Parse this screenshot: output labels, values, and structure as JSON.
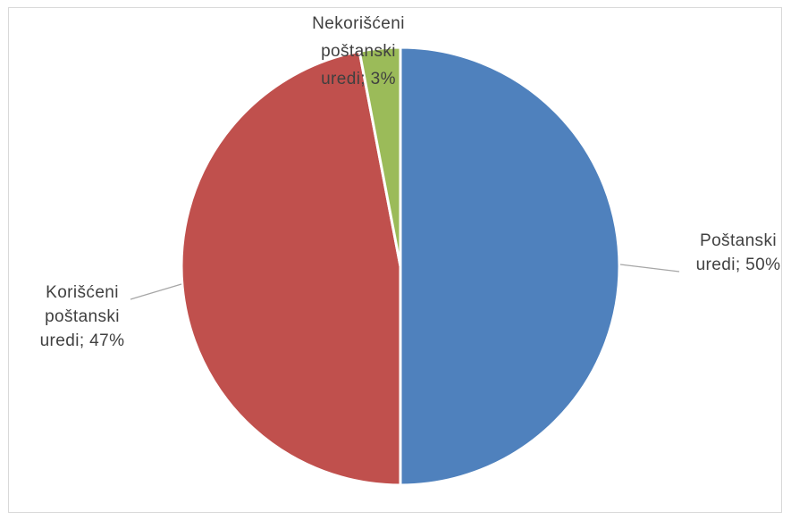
{
  "chart_data": {
    "type": "pie",
    "title": "",
    "slices": [
      {
        "name": "Poštanski uredi",
        "value": 50,
        "label_lines": [
          "Poštanski",
          "uredi; 50%"
        ],
        "color": "#4f81bd"
      },
      {
        "name": "Korišćeni poštanski uredi",
        "value": 47,
        "label_lines": [
          "Korišćeni",
          "poštanski",
          "uredi; 47%"
        ],
        "color": "#c0504d"
      },
      {
        "name": "Nekorišćeni poštanski uredi",
        "value": 3,
        "label_lines": [
          "Nekorišćeni",
          "poštanski",
          "uredi; 3%"
        ],
        "color": "#9bbb59"
      }
    ],
    "legend": "none",
    "start_angle_deg": 0,
    "direction": "clockwise"
  }
}
